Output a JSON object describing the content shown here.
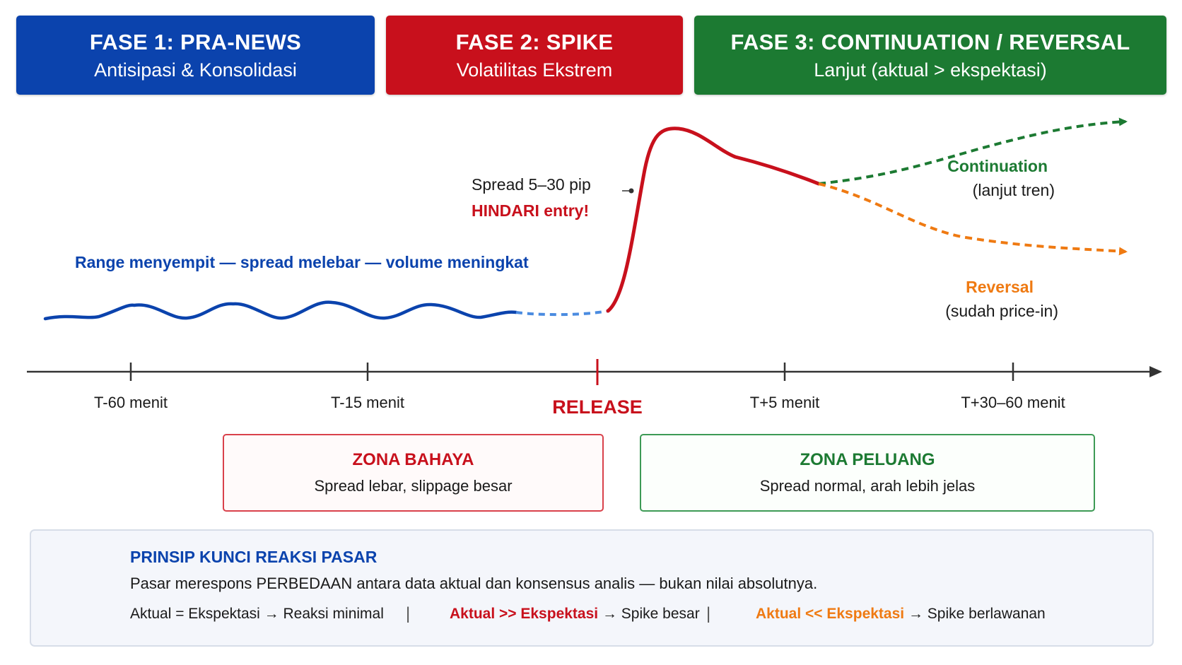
{
  "phases": [
    {
      "title": "FASE 1: PRA-NEWS",
      "subtitle": "Antisipasi & Konsolidasi"
    },
    {
      "title": "FASE 2: SPIKE",
      "subtitle": "Volatilitas Ekstrem"
    },
    {
      "title": "FASE 3: CONTINUATION / REVERSAL",
      "subtitle": "Lanjut (aktual > ekspektasi)"
    }
  ],
  "notes": {
    "range": "Range menyempit — spread melebar — volume meningkat",
    "spread": "Spread 5–30 pip",
    "avoid": "HINDARI entry!",
    "continuation_title": "Continuation",
    "continuation_sub": "(lanjut tren)",
    "reversal_title": "Reversal",
    "reversal_sub": "(sudah price-in)"
  },
  "timeline": {
    "ticks": [
      "T-60 menit",
      "T-15 menit",
      "T+5 menit",
      "T+30–60 menit"
    ],
    "release": "RELEASE"
  },
  "zones": {
    "danger": {
      "title": "ZONA BAHAYA",
      "subtitle": "Spread lebar, slippage besar"
    },
    "opportunity": {
      "title": "ZONA PELUANG",
      "subtitle": "Spread normal, arah lebih jelas"
    }
  },
  "principle": {
    "title": "PRINSIP KUNCI REAKSI PASAR",
    "description": "Pasar merespons PERBEDAAN antara data aktual dan konsensus analis — bukan nilai absolutnya.",
    "rule1": "Aktual = Ekspektasi → Reaksi minimal",
    "rule2_key": "Aktual >> Ekspektasi",
    "rule2_result": " → Spike besar",
    "rule3_key": "Aktual << Ekspektasi",
    "rule3_result": " → Spike berlawanan"
  },
  "colors": {
    "phase1": "#0b43ad",
    "phase2": "#c8101c",
    "phase3": "#1c7a32",
    "reversal": "#ef7a12"
  }
}
